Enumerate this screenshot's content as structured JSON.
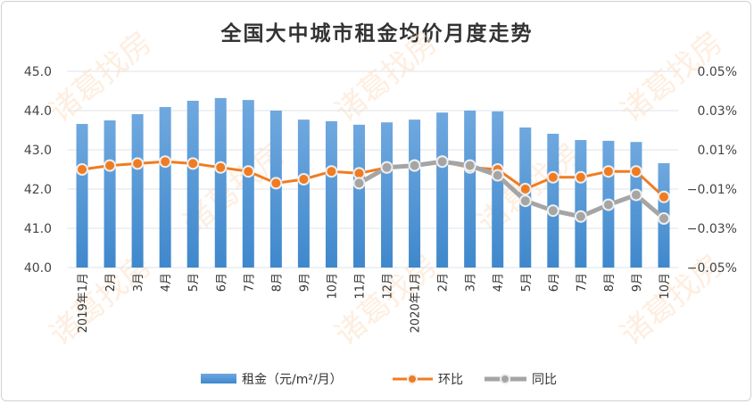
{
  "chart_data": {
    "type": "bar+line",
    "title": "全国大中城市租金均价月度走势",
    "watermark": "诸葛找房",
    "categories": [
      "2019年1月",
      "2月",
      "3月",
      "4月",
      "5月",
      "6月",
      "7月",
      "8月",
      "9月",
      "10月",
      "11月",
      "12月",
      "2020年1月",
      "2月",
      "3月",
      "4月",
      "5月",
      "6月",
      "7月",
      "8月",
      "9月",
      "10月"
    ],
    "left_axis": {
      "ylim": [
        40,
        45
      ],
      "ticks": [
        "40.0",
        "41.0",
        "42.0",
        "43.0",
        "44.0",
        "45.0"
      ]
    },
    "right_axis": {
      "ylim": [
        -0.05,
        0.05
      ],
      "unit": "%",
      "ticks": [
        "−0.05%",
        "−0.03%",
        "−0.01%",
        "0.01%",
        "0.03%",
        "0.05%"
      ]
    },
    "grid": true,
    "legend_placement": "bottom",
    "series": [
      {
        "name": "租金（元/m²/月）",
        "type": "bar",
        "axis": "left",
        "color": "#4a90d9",
        "values": [
          43.66,
          43.75,
          43.91,
          44.09,
          44.25,
          44.32,
          44.27,
          44.0,
          43.77,
          43.73,
          43.64,
          43.7,
          43.77,
          43.95,
          44.0,
          43.98,
          43.57,
          43.41,
          43.25,
          43.23,
          43.2,
          42.66
        ]
      },
      {
        "name": "环比",
        "type": "line",
        "axis": "right",
        "color": "#f07c22",
        "values": [
          0.0,
          0.002,
          0.003,
          0.004,
          0.003,
          0.001,
          -0.001,
          -0.007,
          -0.005,
          -0.001,
          -0.002,
          0.001,
          0.002,
          0.004,
          0.001,
          0.0,
          -0.01,
          -0.004,
          -0.004,
          -0.001,
          -0.001,
          -0.014
        ]
      },
      {
        "name": "同比",
        "type": "line",
        "axis": "right",
        "color": "#a5a5a5",
        "values": [
          null,
          null,
          null,
          null,
          null,
          null,
          null,
          null,
          null,
          null,
          -0.007,
          0.001,
          0.002,
          0.004,
          0.002,
          -0.003,
          -0.016,
          -0.021,
          -0.024,
          -0.018,
          -0.013,
          -0.025
        ]
      }
    ]
  }
}
